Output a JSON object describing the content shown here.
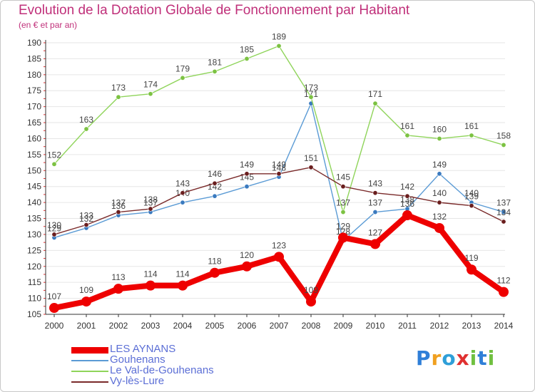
{
  "header": {
    "title": "Evolution de la Dotation Globale de Fonctionnement par Habitant",
    "subtitle": "(en € et par an)"
  },
  "logo": {
    "text": "Proxiti",
    "letters": [
      "P",
      "r",
      "o",
      "x",
      "i",
      "t",
      "i"
    ],
    "letter_colors": [
      "#2f7fd8",
      "#f0a020",
      "#2f9fd8",
      "#e03030",
      "#70c040",
      "#2f7fd8",
      "#70c040"
    ]
  },
  "colors": {
    "title": "#c0307a",
    "axis": "#333333",
    "grid": "#e6e6e6",
    "tick_marks_left": "#e03030"
  },
  "chart_data": {
    "type": "line",
    "title": "Evolution de la Dotation Globale de Fonctionnement par Habitant",
    "subtitle": "(en € et par an)",
    "x": [
      "2000",
      "2001",
      "2002",
      "2003",
      "2004",
      "2005",
      "2006",
      "2007",
      "2008",
      "2009",
      "2010",
      "2011",
      "2012",
      "2013",
      "2014"
    ],
    "ylim": [
      105,
      190
    ],
    "yticks": [
      105,
      110,
      115,
      120,
      125,
      130,
      135,
      140,
      145,
      150,
      155,
      160,
      165,
      170,
      175,
      180,
      185,
      190
    ],
    "grid": true,
    "legend_position": "bottom-left",
    "series": [
      {
        "name": "LES AYNANS",
        "color": "#ee0000",
        "point_color": "#ee0000",
        "emphasis": true,
        "values": [
          107,
          109,
          113,
          114,
          114,
          118,
          120,
          123,
          109,
          129,
          127,
          136,
          132,
          119,
          112
        ],
        "labels": [
          "107",
          "109",
          "113",
          "114",
          "114",
          "118",
          "120",
          "123",
          "109",
          "129",
          "127",
          "136",
          "132",
          "119",
          "112"
        ]
      },
      {
        "name": "Gouhenans",
        "color": "#5b9bd5",
        "point_color": "#3a7abf",
        "emphasis": false,
        "values": [
          129,
          132,
          136,
          137,
          140,
          142,
          145,
          148,
          171,
          128,
          137,
          138,
          149,
          140,
          137
        ],
        "labels": [
          "129",
          "132",
          "136",
          "137",
          "140",
          "142",
          "145",
          "148",
          "171",
          "128",
          "137",
          "138",
          "149",
          "140",
          "137"
        ]
      },
      {
        "name": "Le Val-de-Gouhenans",
        "color": "#8fd45a",
        "point_color": "#7cc242",
        "emphasis": false,
        "values": [
          152,
          163,
          173,
          174,
          179,
          181,
          185,
          189,
          173,
          137,
          171,
          161,
          160,
          161,
          158
        ],
        "labels": [
          "152",
          "163",
          "173",
          "174",
          "179",
          "181",
          "185",
          "189",
          "173",
          "137",
          "171",
          "161",
          "160",
          "161",
          "158"
        ]
      },
      {
        "name": "Vy-lès-Lure",
        "color": "#7a2a2a",
        "point_color": "#6a1e1e",
        "emphasis": false,
        "values": [
          130,
          133,
          137,
          138,
          143,
          146,
          149,
          149,
          151,
          145,
          143,
          142,
          140,
          139,
          134
        ],
        "labels": [
          "130",
          "133",
          "137",
          "138",
          "143",
          "146",
          "149",
          "149",
          "151",
          "145",
          "143",
          "142",
          "140",
          "139",
          "134"
        ]
      }
    ]
  }
}
